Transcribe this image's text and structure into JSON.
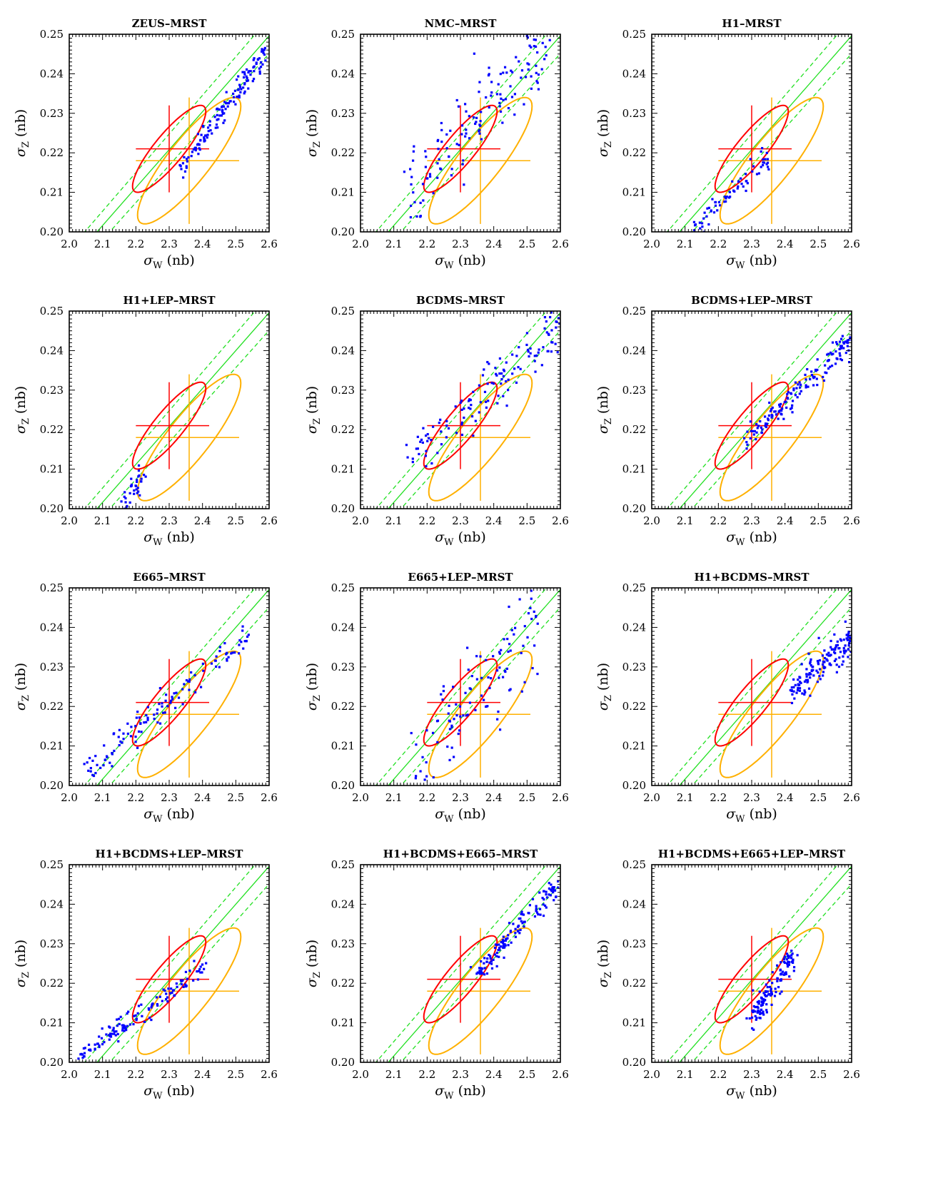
{
  "figure": {
    "background": "#ffffff",
    "colors": {
      "points": "#0000ff",
      "ellipse_red": "#ff0000",
      "ellipse_orange": "#ffb000",
      "diagonal": "#22e022",
      "axes": "#000000"
    },
    "axis_labels": {
      "x_symbol": "σ",
      "x_sub": "W",
      "x_unit": " (nb)",
      "y_symbol": "σ",
      "y_sub": "Z",
      "y_unit": " (nb)"
    },
    "x_ticks": [
      "2.0",
      "2.1",
      "2.2",
      "2.3",
      "2.4",
      "2.5",
      "2.6"
    ],
    "y_ticks": [
      "0.20",
      "0.21",
      "0.22",
      "0.23",
      "0.24",
      "0.25"
    ]
  },
  "chart_data": [
    {
      "type": "scatter",
      "title": "ZEUS–MRST",
      "xlim": [
        2.0,
        2.6
      ],
      "ylim": [
        0.2,
        0.25
      ],
      "red_ellipse": {
        "center": [
          2.3,
          0.221
        ],
        "x_err": [
          2.2,
          2.42
        ],
        "y_err": [
          0.21,
          0.232
        ]
      },
      "orange_ellipse": {
        "center": [
          2.36,
          0.218
        ],
        "x_err": [
          2.2,
          2.51
        ],
        "y_err": [
          0.202,
          0.234
        ]
      },
      "points_trend": {
        "from": [
          2.33,
          0.216
        ],
        "to": [
          2.59,
          0.245
        ],
        "spread": 0.0015,
        "n": 140
      }
    },
    {
      "type": "scatter",
      "title": "NMC–MRST",
      "xlim": [
        2.0,
        2.6
      ],
      "ylim": [
        0.2,
        0.25
      ],
      "red_ellipse": {
        "center": [
          2.3,
          0.221
        ],
        "x_err": [
          2.2,
          2.42
        ],
        "y_err": [
          0.21,
          0.232
        ]
      },
      "orange_ellipse": {
        "center": [
          2.36,
          0.218
        ],
        "x_err": [
          2.2,
          2.51
        ],
        "y_err": [
          0.202,
          0.234
        ]
      },
      "points_trend": {
        "from": [
          2.14,
          0.21
        ],
        "to": [
          2.57,
          0.248
        ],
        "spread": 0.0045,
        "n": 140
      }
    },
    {
      "type": "scatter",
      "title": "H1–MRST",
      "xlim": [
        2.0,
        2.6
      ],
      "ylim": [
        0.2,
        0.25
      ],
      "red_ellipse": {
        "center": [
          2.3,
          0.221
        ],
        "x_err": [
          2.2,
          2.42
        ],
        "y_err": [
          0.21,
          0.232
        ]
      },
      "orange_ellipse": {
        "center": [
          2.36,
          0.218
        ],
        "x_err": [
          2.2,
          2.51
        ],
        "y_err": [
          0.202,
          0.234
        ]
      },
      "points_trend": {
        "from": [
          2.12,
          0.2
        ],
        "to": [
          2.35,
          0.219
        ],
        "spread": 0.0015,
        "n": 70
      }
    },
    {
      "type": "scatter",
      "title": "H1+LEP–MRST",
      "xlim": [
        2.0,
        2.6
      ],
      "ylim": [
        0.2,
        0.25
      ],
      "red_ellipse": {
        "center": [
          2.3,
          0.221
        ],
        "x_err": [
          2.2,
          2.42
        ],
        "y_err": [
          0.21,
          0.232
        ]
      },
      "orange_ellipse": {
        "center": [
          2.36,
          0.218
        ],
        "x_err": [
          2.2,
          2.51
        ],
        "y_err": [
          0.202,
          0.234
        ]
      },
      "points_trend": {
        "from": [
          2.16,
          0.201
        ],
        "to": [
          2.23,
          0.209
        ],
        "spread": 0.0015,
        "n": 35
      }
    },
    {
      "type": "scatter",
      "title": "BCDMS–MRST",
      "xlim": [
        2.0,
        2.6
      ],
      "ylim": [
        0.2,
        0.25
      ],
      "red_ellipse": {
        "center": [
          2.3,
          0.221
        ],
        "x_err": [
          2.2,
          2.42
        ],
        "y_err": [
          0.21,
          0.232
        ]
      },
      "orange_ellipse": {
        "center": [
          2.36,
          0.218
        ],
        "x_err": [
          2.2,
          2.51
        ],
        "y_err": [
          0.202,
          0.234
        ]
      },
      "points_trend": {
        "from": [
          2.15,
          0.212
        ],
        "to": [
          2.6,
          0.247
        ],
        "spread": 0.0035,
        "n": 130
      }
    },
    {
      "type": "scatter",
      "title": "BCDMS+LEP–MRST",
      "xlim": [
        2.0,
        2.6
      ],
      "ylim": [
        0.2,
        0.25
      ],
      "red_ellipse": {
        "center": [
          2.3,
          0.221
        ],
        "x_err": [
          2.2,
          2.42
        ],
        "y_err": [
          0.21,
          0.232
        ]
      },
      "orange_ellipse": {
        "center": [
          2.36,
          0.218
        ],
        "x_err": [
          2.2,
          2.51
        ],
        "y_err": [
          0.202,
          0.234
        ]
      },
      "points_trend": {
        "from": [
          2.28,
          0.217
        ],
        "to": [
          2.6,
          0.243
        ],
        "spread": 0.0015,
        "n": 150
      }
    },
    {
      "type": "scatter",
      "title": "E665–MRST",
      "xlim": [
        2.0,
        2.6
      ],
      "ylim": [
        0.2,
        0.25
      ],
      "red_ellipse": {
        "center": [
          2.3,
          0.221
        ],
        "x_err": [
          2.2,
          2.42
        ],
        "y_err": [
          0.21,
          0.232
        ]
      },
      "orange_ellipse": {
        "center": [
          2.36,
          0.218
        ],
        "x_err": [
          2.2,
          2.51
        ],
        "y_err": [
          0.202,
          0.234
        ]
      },
      "points_trend": {
        "from": [
          2.04,
          0.203
        ],
        "to": [
          2.54,
          0.238
        ],
        "spread": 0.002,
        "n": 120
      }
    },
    {
      "type": "scatter",
      "title": "E665+LEP–MRST",
      "xlim": [
        2.0,
        2.6
      ],
      "ylim": [
        0.2,
        0.25
      ],
      "red_ellipse": {
        "center": [
          2.3,
          0.221
        ],
        "x_err": [
          2.2,
          2.42
        ],
        "y_err": [
          0.21,
          0.232
        ]
      },
      "orange_ellipse": {
        "center": [
          2.36,
          0.218
        ],
        "x_err": [
          2.2,
          2.51
        ],
        "y_err": [
          0.202,
          0.234
        ]
      },
      "points_trend": {
        "from": [
          2.16,
          0.202
        ],
        "to": [
          2.55,
          0.246
        ],
        "spread": 0.0065,
        "n": 110
      }
    },
    {
      "type": "scatter",
      "title": "H1+BCDMS–MRST",
      "xlim": [
        2.0,
        2.6
      ],
      "ylim": [
        0.2,
        0.25
      ],
      "red_ellipse": {
        "center": [
          2.3,
          0.221
        ],
        "x_err": [
          2.2,
          2.42
        ],
        "y_err": [
          0.21,
          0.232
        ]
      },
      "orange_ellipse": {
        "center": [
          2.36,
          0.218
        ],
        "x_err": [
          2.2,
          2.51
        ],
        "y_err": [
          0.202,
          0.234
        ]
      },
      "points_trend": {
        "from": [
          2.42,
          0.224
        ],
        "to": [
          2.6,
          0.237
        ],
        "spread": 0.002,
        "n": 150
      }
    },
    {
      "type": "scatter",
      "title": "H1+BCDMS+LEP–MRST",
      "xlim": [
        2.0,
        2.6
      ],
      "ylim": [
        0.2,
        0.25
      ],
      "red_ellipse": {
        "center": [
          2.3,
          0.221
        ],
        "x_err": [
          2.2,
          2.42
        ],
        "y_err": [
          0.21,
          0.232
        ]
      },
      "orange_ellipse": {
        "center": [
          2.36,
          0.218
        ],
        "x_err": [
          2.2,
          2.51
        ],
        "y_err": [
          0.202,
          0.234
        ]
      },
      "points_trend": {
        "from": [
          2.03,
          0.201
        ],
        "to": [
          2.41,
          0.224
        ],
        "spread": 0.0012,
        "n": 130
      }
    },
    {
      "type": "scatter",
      "title": "H1+BCDMS+E665–MRST",
      "xlim": [
        2.0,
        2.6
      ],
      "ylim": [
        0.2,
        0.25
      ],
      "red_ellipse": {
        "center": [
          2.3,
          0.221
        ],
        "x_err": [
          2.2,
          2.42
        ],
        "y_err": [
          0.21,
          0.232
        ]
      },
      "orange_ellipse": {
        "center": [
          2.36,
          0.218
        ],
        "x_err": [
          2.2,
          2.51
        ],
        "y_err": [
          0.202,
          0.234
        ]
      },
      "points_trend": {
        "from": [
          2.35,
          0.222
        ],
        "to": [
          2.59,
          0.245
        ],
        "spread": 0.0012,
        "n": 140
      }
    },
    {
      "type": "scatter",
      "title": "H1+BCDMS+E665+LEP–MRST",
      "xlim": [
        2.0,
        2.6
      ],
      "ylim": [
        0.2,
        0.25
      ],
      "red_ellipse": {
        "center": [
          2.3,
          0.221
        ],
        "x_err": [
          2.2,
          2.42
        ],
        "y_err": [
          0.21,
          0.232
        ]
      },
      "orange_ellipse": {
        "center": [
          2.36,
          0.218
        ],
        "x_err": [
          2.2,
          2.51
        ],
        "y_err": [
          0.202,
          0.234
        ]
      },
      "points_trend": {
        "from": [
          2.3,
          0.211
        ],
        "to": [
          2.43,
          0.228
        ],
        "spread": 0.0015,
        "n": 130
      }
    }
  ]
}
